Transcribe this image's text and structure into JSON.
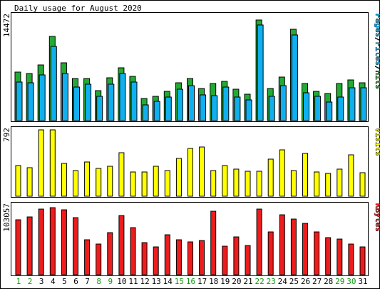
{
  "chart_data": {
    "type": "bar",
    "title": "Daily usage for August 2020",
    "days": [
      "1",
      "2",
      "3",
      "4",
      "5",
      "6",
      "7",
      "8",
      "9",
      "10",
      "11",
      "12",
      "13",
      "14",
      "15",
      "16",
      "17",
      "18",
      "19",
      "20",
      "21",
      "22",
      "23",
      "24",
      "25",
      "26",
      "27",
      "28",
      "29",
      "30",
      "31"
    ],
    "weekend_days": [
      "1",
      "2",
      "8",
      "9",
      "15",
      "16",
      "22",
      "23",
      "29",
      "30"
    ],
    "colors": {
      "hits": "#22aa33",
      "files": "#10b0ee",
      "visits": "#ffff00",
      "kbytes": "#ee1c1c",
      "weekend_label": "#109910",
      "weekday_label": "#000000"
    },
    "panels": [
      {
        "key": "hits_files",
        "scale_label": "14472",
        "ymax": 14472,
        "legend": [
          {
            "text": "Pages",
            "color": "#10b0ee"
          },
          {
            "text": "/",
            "color": "#000000"
          },
          {
            "text": "Files",
            "color": "#10b0ee"
          },
          {
            "text": "/",
            "color": "#000000"
          },
          {
            "text": "Hits",
            "color": "#22aa33"
          }
        ],
        "series": [
          {
            "name": "Hits",
            "color": "#22aa33",
            "values": [
              6740,
              6450,
              7690,
              11650,
              7950,
              5850,
              5780,
              4100,
              5890,
              7290,
              6100,
              3050,
              3390,
              4010,
              5230,
              5790,
              4400,
              5150,
              5400,
              4300,
              3660,
              13900,
              4400,
              6050,
              12630,
              5140,
              4070,
              3710,
              5130,
              5620,
              5240
            ]
          },
          {
            "name": "Files",
            "color": "#10b0ee",
            "values": [
              5330,
              5190,
              6310,
              10230,
              6540,
              4620,
              5030,
              3380,
              5010,
              6470,
              5340,
              2170,
              2630,
              3270,
              4350,
              4860,
              3580,
              3400,
              4630,
              3200,
              2850,
              13150,
              3380,
              4810,
              11770,
              3870,
              3360,
              2580,
              3200,
              4540,
              4570
            ]
          }
        ]
      },
      {
        "key": "visits",
        "scale_label": "792",
        "ymax": 792,
        "legend": [
          {
            "text": "Visits",
            "color": "#ffff00"
          }
        ],
        "series": [
          {
            "name": "Visits",
            "color": "#ffff00",
            "values": [
              370,
              340,
              792,
              792,
              390,
              310,
              410,
              330,
              360,
              520,
              290,
              290,
              360,
              310,
              450,
              570,
              590,
              310,
              370,
              320,
              300,
              300,
              440,
              550,
              310,
              510,
              290,
              270,
              320,
              490,
              280
            ]
          }
        ]
      },
      {
        "key": "kbytes",
        "scale_label": "103057",
        "ymax": 103057,
        "legend": [
          {
            "text": "KBytes",
            "color": "#ee1c1c"
          }
        ],
        "series": [
          {
            "name": "KBytes",
            "color": "#ee1c1c",
            "values": [
              82000,
              86000,
              98000,
              100000,
              97000,
              85500,
              52000,
              46000,
              63000,
              88000,
              70000,
              48000,
              41000,
              60000,
              52000,
              49000,
              51000,
              95000,
              42000,
              56000,
              44000,
              98000,
              64000,
              89000,
              83000,
              76000,
              64000,
              55000,
              53000,
              46000,
              41000
            ]
          }
        ]
      }
    ]
  }
}
